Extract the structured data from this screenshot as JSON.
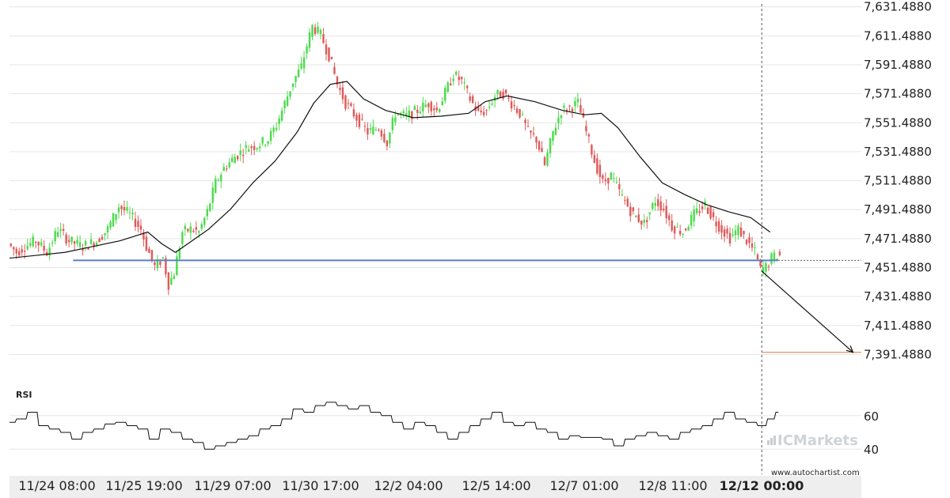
{
  "chart_data": {
    "type": "candlestick",
    "y_ticks": [
      "7,631.4880",
      "7,611.4880",
      "7,591.4880",
      "7,571.4880",
      "7,551.4880",
      "7,531.4880",
      "7,511.4880",
      "7,491.4880",
      "7,471.4880",
      "7,451.4880",
      "7,431.4880",
      "7,411.4880",
      "7,391.4880"
    ],
    "y_tick_values": [
      7631.488,
      7611.488,
      7591.488,
      7571.488,
      7551.488,
      7531.488,
      7511.488,
      7491.488,
      7471.488,
      7451.488,
      7431.488,
      7411.488,
      7391.488
    ],
    "ylim": [
      7371.0,
      7633.5
    ],
    "x_ticks": [
      "11/24 08:00",
      "11/25 19:00",
      "11/29 07:00",
      "11/30 17:00",
      "12/2 04:00",
      "12/5 14:00",
      "12/7 01:00",
      "12/8 11:00",
      "12/12 00:00"
    ],
    "highlighted_x_tick": "12/12 00:00",
    "price_path": [
      {
        "x": 0,
        "y": 7468
      },
      {
        "x": 3,
        "y": 7462
      },
      {
        "x": 6,
        "y": 7466
      },
      {
        "x": 10,
        "y": 7470
      },
      {
        "x": 14,
        "y": 7462
      },
      {
        "x": 18,
        "y": 7478
      },
      {
        "x": 22,
        "y": 7470
      },
      {
        "x": 27,
        "y": 7466
      },
      {
        "x": 32,
        "y": 7470
      },
      {
        "x": 36,
        "y": 7478
      },
      {
        "x": 40,
        "y": 7494
      },
      {
        "x": 44,
        "y": 7488
      },
      {
        "x": 48,
        "y": 7478
      },
      {
        "x": 50,
        "y": 7466
      },
      {
        "x": 53,
        "y": 7452
      },
      {
        "x": 56,
        "y": 7458
      },
      {
        "x": 58,
        "y": 7440
      },
      {
        "x": 60,
        "y": 7448
      },
      {
        "x": 63,
        "y": 7476
      },
      {
        "x": 66,
        "y": 7478
      },
      {
        "x": 69,
        "y": 7476
      },
      {
        "x": 72,
        "y": 7490
      },
      {
        "x": 75,
        "y": 7510
      },
      {
        "x": 78,
        "y": 7520
      },
      {
        "x": 82,
        "y": 7528
      },
      {
        "x": 86,
        "y": 7534
      },
      {
        "x": 90,
        "y": 7536
      },
      {
        "x": 94,
        "y": 7540
      },
      {
        "x": 97,
        "y": 7550
      },
      {
        "x": 100,
        "y": 7565
      },
      {
        "x": 103,
        "y": 7580
      },
      {
        "x": 106,
        "y": 7590
      },
      {
        "x": 108,
        "y": 7605
      },
      {
        "x": 110,
        "y": 7618
      },
      {
        "x": 113,
        "y": 7612
      },
      {
        "x": 116,
        "y": 7598
      },
      {
        "x": 119,
        "y": 7578
      },
      {
        "x": 122,
        "y": 7565
      },
      {
        "x": 126,
        "y": 7555
      },
      {
        "x": 130,
        "y": 7545
      },
      {
        "x": 134,
        "y": 7548
      },
      {
        "x": 137,
        "y": 7538
      },
      {
        "x": 140,
        "y": 7558
      },
      {
        "x": 144,
        "y": 7556
      },
      {
        "x": 148,
        "y": 7560
      },
      {
        "x": 152,
        "y": 7565
      },
      {
        "x": 155,
        "y": 7560
      },
      {
        "x": 158,
        "y": 7572
      },
      {
        "x": 161,
        "y": 7585
      },
      {
        "x": 164,
        "y": 7580
      },
      {
        "x": 167,
        "y": 7568
      },
      {
        "x": 170,
        "y": 7558
      },
      {
        "x": 173,
        "y": 7560
      },
      {
        "x": 176,
        "y": 7570
      },
      {
        "x": 179,
        "y": 7572
      },
      {
        "x": 182,
        "y": 7565
      },
      {
        "x": 185,
        "y": 7558
      },
      {
        "x": 188,
        "y": 7545
      },
      {
        "x": 191,
        "y": 7540
      },
      {
        "x": 194,
        "y": 7522
      },
      {
        "x": 197,
        "y": 7545
      },
      {
        "x": 200,
        "y": 7560
      },
      {
        "x": 203,
        "y": 7562
      },
      {
        "x": 206,
        "y": 7565
      },
      {
        "x": 209,
        "y": 7545
      },
      {
        "x": 212,
        "y": 7525
      },
      {
        "x": 215,
        "y": 7510
      },
      {
        "x": 218,
        "y": 7515
      },
      {
        "x": 222,
        "y": 7500
      },
      {
        "x": 226,
        "y": 7488
      },
      {
        "x": 230,
        "y": 7482
      },
      {
        "x": 234,
        "y": 7498
      },
      {
        "x": 237,
        "y": 7492
      },
      {
        "x": 240,
        "y": 7480
      },
      {
        "x": 244,
        "y": 7476
      },
      {
        "x": 248,
        "y": 7488
      },
      {
        "x": 252,
        "y": 7495
      },
      {
        "x": 255,
        "y": 7485
      },
      {
        "x": 258,
        "y": 7478
      },
      {
        "x": 261,
        "y": 7472
      },
      {
        "x": 264,
        "y": 7478
      },
      {
        "x": 267,
        "y": 7470
      },
      {
        "x": 270,
        "y": 7462
      },
      {
        "x": 272,
        "y": 7450
      },
      {
        "x": 274,
        "y": 7452
      },
      {
        "x": 276,
        "y": 7458
      },
      {
        "x": 278,
        "y": 7460
      }
    ],
    "moving_average": [
      {
        "x": 0,
        "y": 7458
      },
      {
        "x": 10,
        "y": 7460
      },
      {
        "x": 20,
        "y": 7462
      },
      {
        "x": 30,
        "y": 7466
      },
      {
        "x": 40,
        "y": 7470
      },
      {
        "x": 50,
        "y": 7476
      },
      {
        "x": 55,
        "y": 7468
      },
      {
        "x": 60,
        "y": 7462
      },
      {
        "x": 66,
        "y": 7470
      },
      {
        "x": 72,
        "y": 7478
      },
      {
        "x": 80,
        "y": 7492
      },
      {
        "x": 88,
        "y": 7510
      },
      {
        "x": 96,
        "y": 7525
      },
      {
        "x": 104,
        "y": 7545
      },
      {
        "x": 110,
        "y": 7565
      },
      {
        "x": 116,
        "y": 7578
      },
      {
        "x": 122,
        "y": 7580
      },
      {
        "x": 128,
        "y": 7568
      },
      {
        "x": 136,
        "y": 7560
      },
      {
        "x": 146,
        "y": 7555
      },
      {
        "x": 156,
        "y": 7556
      },
      {
        "x": 166,
        "y": 7558
      },
      {
        "x": 172,
        "y": 7566
      },
      {
        "x": 180,
        "y": 7570
      },
      {
        "x": 190,
        "y": 7566
      },
      {
        "x": 200,
        "y": 7560
      },
      {
        "x": 208,
        "y": 7557
      },
      {
        "x": 214,
        "y": 7558
      },
      {
        "x": 220,
        "y": 7548
      },
      {
        "x": 228,
        "y": 7528
      },
      {
        "x": 236,
        "y": 7510
      },
      {
        "x": 244,
        "y": 7502
      },
      {
        "x": 252,
        "y": 7495
      },
      {
        "x": 260,
        "y": 7490
      },
      {
        "x": 268,
        "y": 7486
      },
      {
        "x": 275,
        "y": 7476
      }
    ],
    "support_level": 7456.5,
    "support_x_range": [
      23,
      278
    ],
    "current_price": 7456.5,
    "prediction": {
      "from": {
        "x": 272,
        "y": 7449
      },
      "to": {
        "x": 305,
        "y": 7393
      }
    },
    "target_level": 7393,
    "target_x_range": [
      272,
      308
    ],
    "breakout_x": 272,
    "rsi": {
      "title": "RSI",
      "ticks": [
        "60",
        "40"
      ],
      "tick_values": [
        60,
        40
      ],
      "ylim": [
        25,
        75
      ],
      "values": [
        {
          "x": 0,
          "y": 56
        },
        {
          "x": 4,
          "y": 58
        },
        {
          "x": 8,
          "y": 62
        },
        {
          "x": 12,
          "y": 54
        },
        {
          "x": 16,
          "y": 52
        },
        {
          "x": 20,
          "y": 50
        },
        {
          "x": 24,
          "y": 46
        },
        {
          "x": 28,
          "y": 50
        },
        {
          "x": 32,
          "y": 52
        },
        {
          "x": 36,
          "y": 55
        },
        {
          "x": 40,
          "y": 56
        },
        {
          "x": 44,
          "y": 54
        },
        {
          "x": 48,
          "y": 52
        },
        {
          "x": 52,
          "y": 46
        },
        {
          "x": 56,
          "y": 52
        },
        {
          "x": 60,
          "y": 50
        },
        {
          "x": 64,
          "y": 46
        },
        {
          "x": 68,
          "y": 44
        },
        {
          "x": 72,
          "y": 40
        },
        {
          "x": 76,
          "y": 42
        },
        {
          "x": 80,
          "y": 44
        },
        {
          "x": 84,
          "y": 46
        },
        {
          "x": 88,
          "y": 48
        },
        {
          "x": 92,
          "y": 52
        },
        {
          "x": 96,
          "y": 54
        },
        {
          "x": 100,
          "y": 58
        },
        {
          "x": 104,
          "y": 64
        },
        {
          "x": 108,
          "y": 62
        },
        {
          "x": 112,
          "y": 66
        },
        {
          "x": 116,
          "y": 68
        },
        {
          "x": 120,
          "y": 66
        },
        {
          "x": 124,
          "y": 64
        },
        {
          "x": 128,
          "y": 66
        },
        {
          "x": 132,
          "y": 62
        },
        {
          "x": 136,
          "y": 60
        },
        {
          "x": 140,
          "y": 56
        },
        {
          "x": 144,
          "y": 52
        },
        {
          "x": 148,
          "y": 56
        },
        {
          "x": 152,
          "y": 54
        },
        {
          "x": 156,
          "y": 50
        },
        {
          "x": 160,
          "y": 46
        },
        {
          "x": 164,
          "y": 50
        },
        {
          "x": 168,
          "y": 54
        },
        {
          "x": 172,
          "y": 58
        },
        {
          "x": 176,
          "y": 62
        },
        {
          "x": 180,
          "y": 56
        },
        {
          "x": 184,
          "y": 54
        },
        {
          "x": 188,
          "y": 56
        },
        {
          "x": 192,
          "y": 52
        },
        {
          "x": 196,
          "y": 50
        },
        {
          "x": 200,
          "y": 46
        },
        {
          "x": 204,
          "y": 48
        },
        {
          "x": 208,
          "y": 47
        },
        {
          "x": 212,
          "y": 47
        },
        {
          "x": 216,
          "y": 46
        },
        {
          "x": 220,
          "y": 42
        },
        {
          "x": 224,
          "y": 46
        },
        {
          "x": 228,
          "y": 48
        },
        {
          "x": 232,
          "y": 50
        },
        {
          "x": 236,
          "y": 48
        },
        {
          "x": 240,
          "y": 46
        },
        {
          "x": 244,
          "y": 50
        },
        {
          "x": 248,
          "y": 52
        },
        {
          "x": 252,
          "y": 54
        },
        {
          "x": 256,
          "y": 58
        },
        {
          "x": 260,
          "y": 62
        },
        {
          "x": 264,
          "y": 58
        },
        {
          "x": 268,
          "y": 56
        },
        {
          "x": 272,
          "y": 54
        },
        {
          "x": 275,
          "y": 58
        },
        {
          "x": 278,
          "y": 62
        }
      ]
    }
  },
  "brand": {
    "name": "ICMarkets",
    "url": "www.autochartist.com"
  },
  "colors": {
    "bull": "#4ddb4d",
    "bear": "#e05a5a",
    "support": "#5b7fc4",
    "target": "#e08a50",
    "ma": "#111111",
    "rsi": "#111111",
    "grid": "#e6e6e6",
    "axis_bg": "#eeeeee"
  }
}
